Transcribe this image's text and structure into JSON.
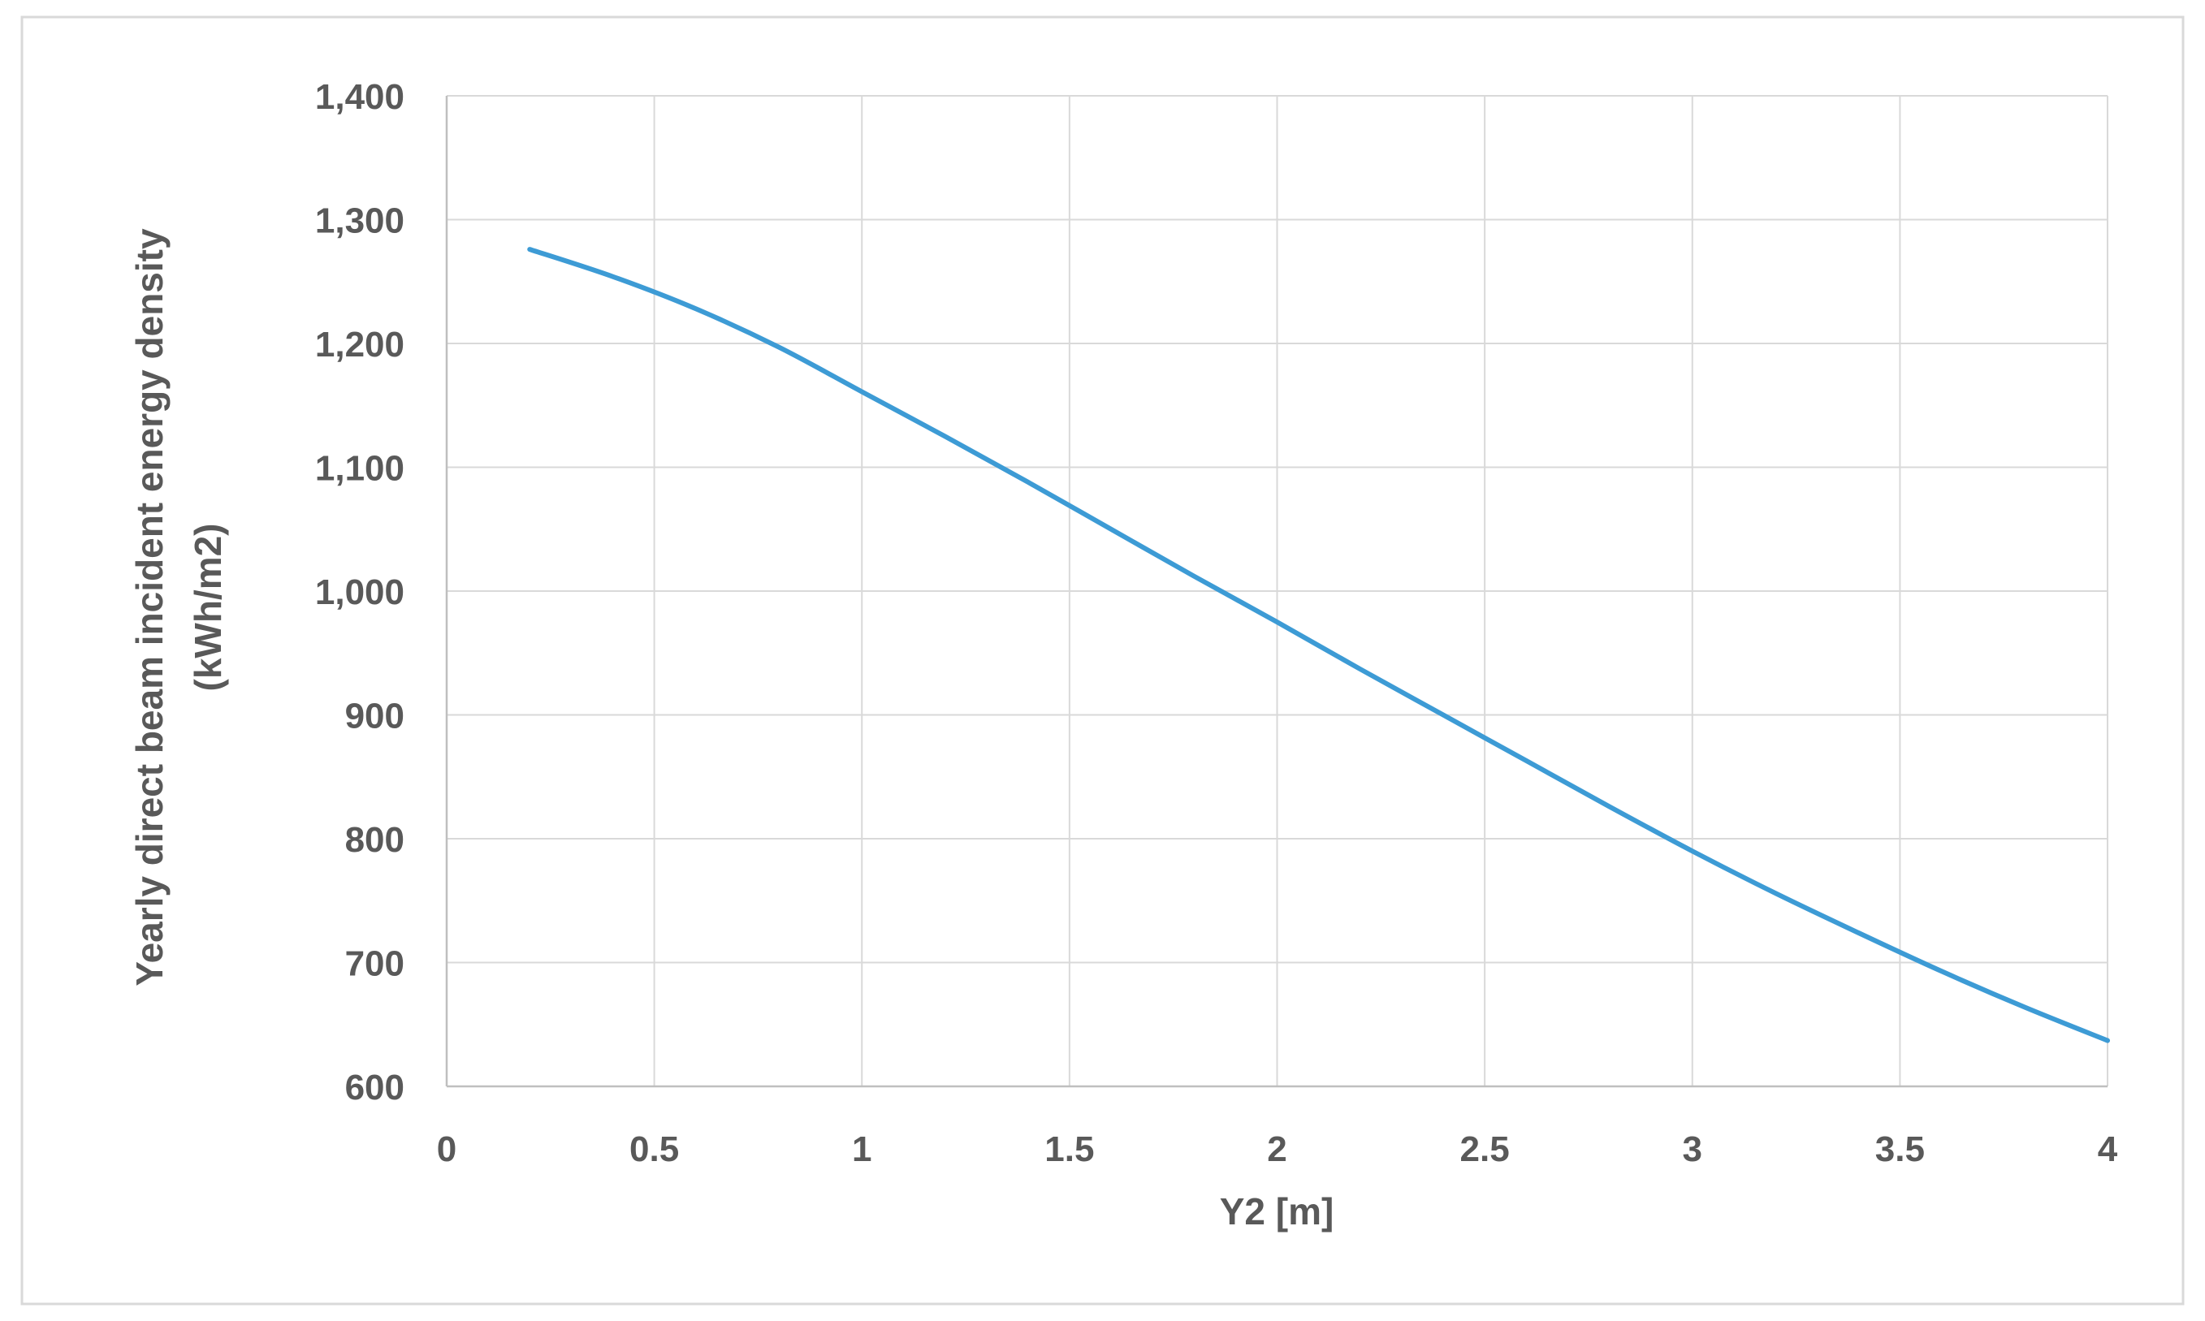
{
  "chart_data": {
    "type": "line",
    "title": "",
    "xlabel": "Y2 [m]",
    "ylabel_lines": [
      "Yearly direct beam incident energy density",
      "(kWh/m2)"
    ],
    "xlim": [
      0,
      4
    ],
    "ylim": [
      600,
      1400
    ],
    "x_ticks": [
      "0",
      "0.5",
      "1",
      "1.5",
      "2",
      "2.5",
      "3",
      "3.5",
      "4"
    ],
    "y_ticks": [
      "600",
      "700",
      "800",
      "900",
      "1,000",
      "1,100",
      "1,200",
      "1,300",
      "1,400"
    ],
    "grid": true,
    "legend": "none",
    "series": [
      {
        "color": "#3d9bd5",
        "x": [
          0.2,
          0.4,
          0.6,
          0.8,
          1.0,
          1.2,
          1.4,
          1.6,
          1.8,
          2.0,
          2.2,
          2.4,
          2.6,
          2.8,
          3.0,
          3.2,
          3.4,
          3.6,
          3.8,
          4.0
        ],
        "y": [
          1276,
          1254,
          1228,
          1197,
          1161,
          1125,
          1088,
          1050,
          1012,
          975,
          937,
          900,
          863,
          826,
          790,
          756,
          724,
          693,
          664,
          637
        ]
      }
    ]
  }
}
